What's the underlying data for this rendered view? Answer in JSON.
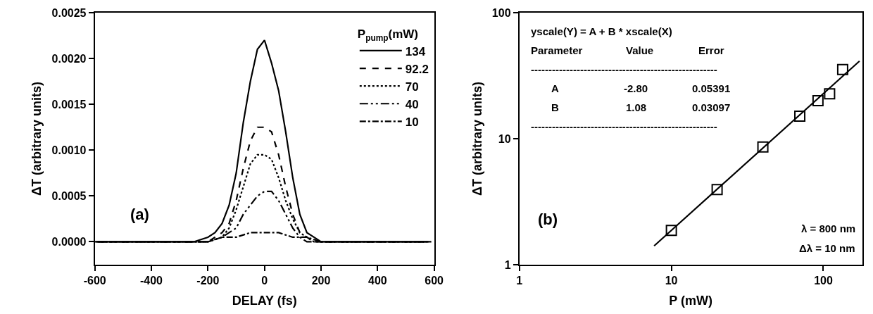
{
  "chart_data": [
    {
      "type": "line",
      "xlabel": "DELAY (fs)",
      "ylabel": "ΔT (arbitrary units)",
      "legend_title": "P$_{pump}$(mW)",
      "legend": "top right",
      "xlim": [
        -600,
        600
      ],
      "xticks": [
        -600,
        -400,
        -200,
        0,
        200,
        400,
        600
      ],
      "ylim": [
        -0.00025,
        0.0025
      ],
      "yticks": [
        {
          "value": 0,
          "label": "0.0000"
        },
        {
          "value": 0.0005,
          "label": "0.0005"
        },
        {
          "value": 0.001,
          "label": "0.0010"
        },
        {
          "value": 0.0015,
          "label": "0.0015"
        },
        {
          "value": 0.002,
          "label": "0.0020"
        },
        {
          "value": 0.0025,
          "label": "0.0025"
        }
      ],
      "annotations": [
        "(a)"
      ],
      "series": [
        {
          "name": "134",
          "color": "#000000",
          "line_style": "solid",
          "x": [
            -600,
            -500,
            -400,
            -300,
            -250,
            -200,
            -175,
            -150,
            -125,
            -100,
            -75,
            -50,
            -25,
            0,
            25,
            50,
            75,
            100,
            125,
            150,
            175,
            200,
            250,
            300,
            400,
            500,
            590
          ],
          "values": [
            0,
            0,
            0,
            0,
            0,
            5e-05,
            0.0001,
            0.0002,
            0.0004,
            0.00075,
            0.0013,
            0.00175,
            0.0021,
            0.0022,
            0.00195,
            0.00165,
            0.0012,
            0.0007,
            0.0003,
            0.0001,
            5e-05,
            0,
            0,
            0,
            0,
            0,
            0
          ]
        },
        {
          "name": "92.2",
          "color": "#000000",
          "line_style": "dashed",
          "x": [
            -595,
            -500,
            -400,
            -300,
            -200,
            -150,
            -125,
            -100,
            -75,
            -50,
            -25,
            0,
            25,
            50,
            75,
            100,
            125,
            150,
            175,
            200,
            300,
            400,
            500,
            585
          ],
          "values": [
            0,
            0,
            0,
            0,
            0,
            0.0001,
            0.0002,
            0.00045,
            0.0008,
            0.0011,
            0.00125,
            0.00125,
            0.0012,
            0.00095,
            0.0006,
            0.0003,
            0.0001,
            5e-05,
            0,
            0,
            0,
            0,
            0,
            0
          ]
        },
        {
          "name": "70",
          "color": "#000000",
          "line_style": "dotted",
          "x": [
            -590,
            -500,
            -400,
            -300,
            -200,
            -150,
            -125,
            -100,
            -75,
            -50,
            -25,
            0,
            25,
            50,
            75,
            100,
            125,
            150,
            175,
            200,
            300,
            400,
            500,
            580
          ],
          "values": [
            0,
            0,
            0,
            0,
            0,
            5e-05,
            0.00015,
            0.00035,
            0.0006,
            0.00085,
            0.00095,
            0.00095,
            0.0009,
            0.0007,
            0.00045,
            0.00025,
            0.0001,
            5e-05,
            0,
            0,
            0,
            0,
            0,
            0
          ]
        },
        {
          "name": "40",
          "color": "#000000",
          "line_style": "dashdotdot",
          "x": [
            -585,
            -500,
            -400,
            -300,
            -200,
            -150,
            -125,
            -100,
            -75,
            -50,
            -25,
            0,
            25,
            50,
            75,
            100,
            125,
            150,
            175,
            200,
            300,
            400,
            500,
            575
          ],
          "values": [
            0,
            0,
            0,
            0,
            0,
            5e-05,
            0.0001,
            0.00015,
            0.0003,
            0.0004,
            0.0005,
            0.00055,
            0.00055,
            0.00045,
            0.0003,
            0.00015,
            5e-05,
            0,
            0,
            0,
            0,
            0,
            0,
            0
          ]
        },
        {
          "name": "10",
          "color": "#000000",
          "line_style": "dashdot",
          "x": [
            -580,
            -500,
            -400,
            -300,
            -200,
            -150,
            -100,
            -50,
            0,
            25,
            50,
            100,
            150,
            200,
            300,
            400,
            500,
            570
          ],
          "values": [
            0,
            0,
            0,
            0,
            0,
            5e-05,
            5e-05,
            0.0001,
            0.0001,
            0.0001,
            0.0001,
            5e-05,
            5e-05,
            0,
            0,
            0,
            0,
            0
          ]
        }
      ]
    },
    {
      "type": "scatter",
      "xlabel": "P (mW)",
      "ylabel": "ΔT (arbitrary units)",
      "log": "xy",
      "legend": false,
      "xlim": [
        1,
        180
      ],
      "xticks": [
        1,
        10,
        100
      ],
      "ylim": [
        1,
        100
      ],
      "yticks": [
        1,
        10,
        100
      ],
      "annotations": [
        "(b)",
        "yscale(Y) = A + B * xscale(X)",
        "Parameter",
        "Value",
        "Error",
        "-----------------------------------------------------",
        "A",
        "-2.80",
        "0.05391",
        "B",
        "1.08",
        "0.03097",
        "-----------------------------------------------------",
        "λ = 800 nm",
        "Δλ = 10 nm"
      ],
      "series": [
        {
          "color": "#000000",
          "marker": "square",
          "x": [
            10,
            20,
            40,
            70,
            92.2,
            110,
            134
          ],
          "values": [
            1.87,
            3.95,
            8.6,
            15.1,
            20,
            22.7,
            35.4
          ]
        },
        {
          "type": "line",
          "color": "#000000",
          "line_style": "solid",
          "x": [
            7.7,
            173
          ],
          "values": [
            1.41,
            41.3
          ]
        }
      ]
    }
  ]
}
